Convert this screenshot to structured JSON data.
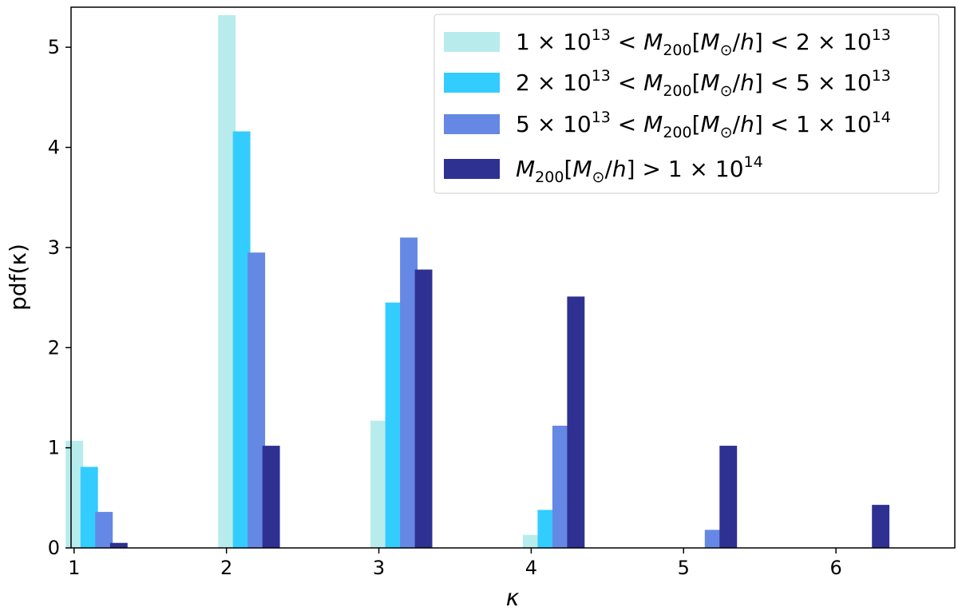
{
  "chart_data": {
    "type": "bar",
    "xlabel": "κ",
    "ylabel": "pdf(κ)",
    "xlim": [
      0.98,
      6.78
    ],
    "ylim": [
      0,
      5.4
    ],
    "xticks": [
      1,
      2,
      3,
      4,
      5,
      6
    ],
    "yticks": [
      0,
      1,
      2,
      3,
      4,
      5
    ],
    "legend_position": "top-right",
    "grid": false,
    "series": [
      {
        "name": "1 × 10^13 < M_200[M_⊙/h] < 2 × 10^13",
        "color": "#b8ecec",
        "x": [
          1,
          2,
          3,
          4
        ],
        "values": [
          1.07,
          5.32,
          1.27,
          0.13
        ]
      },
      {
        "name": "2 × 10^13 < M_200[M_⊙/h] < 5 × 10^13",
        "color": "#33ccff",
        "x": [
          1,
          2,
          3,
          4
        ],
        "values": [
          0.81,
          4.16,
          2.45,
          0.38
        ]
      },
      {
        "name": "5 × 10^13 < M_200[M_⊙/h] < 1 × 10^14",
        "color": "#6688e5",
        "x": [
          1,
          2,
          3,
          4,
          5
        ],
        "values": [
          0.36,
          2.95,
          3.1,
          1.22,
          0.18
        ]
      },
      {
        "name": "M_200[M_⊙/h] > 1 × 10^14",
        "color": "#2e3192",
        "x": [
          1,
          2,
          3,
          4,
          5,
          6
        ],
        "values": [
          0.05,
          1.02,
          2.78,
          2.51,
          1.02,
          0.43
        ]
      }
    ]
  }
}
